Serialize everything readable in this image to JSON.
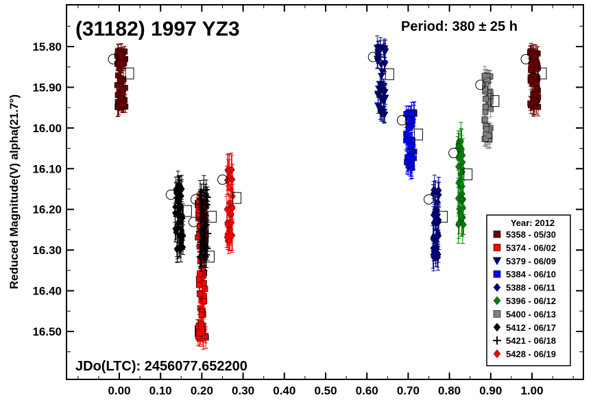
{
  "chart_data": {
    "type": "scatter",
    "title": "(31182) 1997 YZ3",
    "period_text": "Period: 380 ± 25 h",
    "jdo_text": "JDo(LTC): 2456077.652200",
    "ylabel": "Reduced Magnitude(V) alpha(21.7°)",
    "xlabel": "",
    "xlim": [
      -0.2,
      1.2
    ],
    "ylim": [
      16.6,
      15.7
    ],
    "y_inverted": true,
    "grid": false,
    "x_ticks": [
      0.0,
      0.1,
      0.2,
      0.3,
      0.4,
      0.5,
      0.6,
      0.7,
      0.8,
      0.9,
      1.0
    ],
    "x_tick_labels": [
      "0.00",
      "0.10",
      "0.20",
      "0.30",
      "0.40",
      "0.50",
      "0.60",
      "0.70",
      "0.80",
      "0.90",
      "1.00"
    ],
    "y_ticks": [
      15.8,
      15.9,
      16.0,
      16.1,
      16.2,
      16.3,
      16.4,
      16.5
    ],
    "y_tick_labels": [
      "15.80",
      "15.90",
      "16.00",
      "16.10",
      "16.20",
      "16.30",
      "16.40",
      "16.50"
    ],
    "legend": {
      "title": "Year: 2012",
      "placement": "bottom-right"
    },
    "series": [
      {
        "name": "5358 - 05/30",
        "marker": "square",
        "color": "#6b0000",
        "x_range": [
          -0.005,
          0.015
        ],
        "y_range": [
          15.81,
          15.95
        ],
        "x_range2": [
          0.995,
          1.015
        ],
        "y_range2": [
          15.81,
          15.95
        ],
        "count": 50,
        "error": 0.02
      },
      {
        "name": "5374 - 06/02",
        "marker": "square",
        "color": "#ff0000",
        "x_range": [
          0.19,
          0.21
        ],
        "y_range": [
          16.18,
          16.52
        ],
        "count": 80,
        "error": 0.025
      },
      {
        "name": "5379 - 06/09",
        "marker": "triangle-down",
        "color": "#000080",
        "x_range": [
          0.625,
          0.645
        ],
        "y_range": [
          15.8,
          15.97
        ],
        "count": 40,
        "error": 0.025
      },
      {
        "name": "5384 - 06/10",
        "marker": "square",
        "color": "#0000ff",
        "x_range": [
          0.695,
          0.715
        ],
        "y_range": [
          15.96,
          16.1
        ],
        "count": 40,
        "error": 0.025
      },
      {
        "name": "5388 - 06/11",
        "marker": "diamond",
        "color": "#000080",
        "x_range": [
          0.76,
          0.775
        ],
        "y_range": [
          16.15,
          16.32
        ],
        "count": 40,
        "error": 0.03
      },
      {
        "name": "5396 - 06/12",
        "marker": "diamond",
        "color": "#008000",
        "x_range": [
          0.82,
          0.835
        ],
        "y_range": [
          16.03,
          16.24
        ],
        "count": 40,
        "error": 0.04
      },
      {
        "name": "5400 - 06/13",
        "marker": "square",
        "color": "#808080",
        "x_range": [
          0.885,
          0.9
        ],
        "y_range": [
          15.87,
          16.03
        ],
        "count": 40,
        "error": 0.02
      },
      {
        "name": "5412 - 06/17",
        "marker": "diamond",
        "color": "#000000",
        "x_range": [
          0.135,
          0.155
        ],
        "y_range": [
          16.14,
          16.3
        ],
        "count": 50,
        "error": 0.03
      },
      {
        "name": "5421 - 06/18",
        "marker": "plus",
        "color": "#000000",
        "x_range": [
          0.195,
          0.215
        ],
        "y_range": [
          16.15,
          16.32
        ],
        "count": 50,
        "error": 0.03
      },
      {
        "name": "5428 - 06/19",
        "marker": "diamond",
        "color": "#ff0000",
        "x_range": [
          0.26,
          0.275
        ],
        "y_range": [
          16.1,
          16.28
        ],
        "count": 40,
        "error": 0.035
      }
    ]
  }
}
